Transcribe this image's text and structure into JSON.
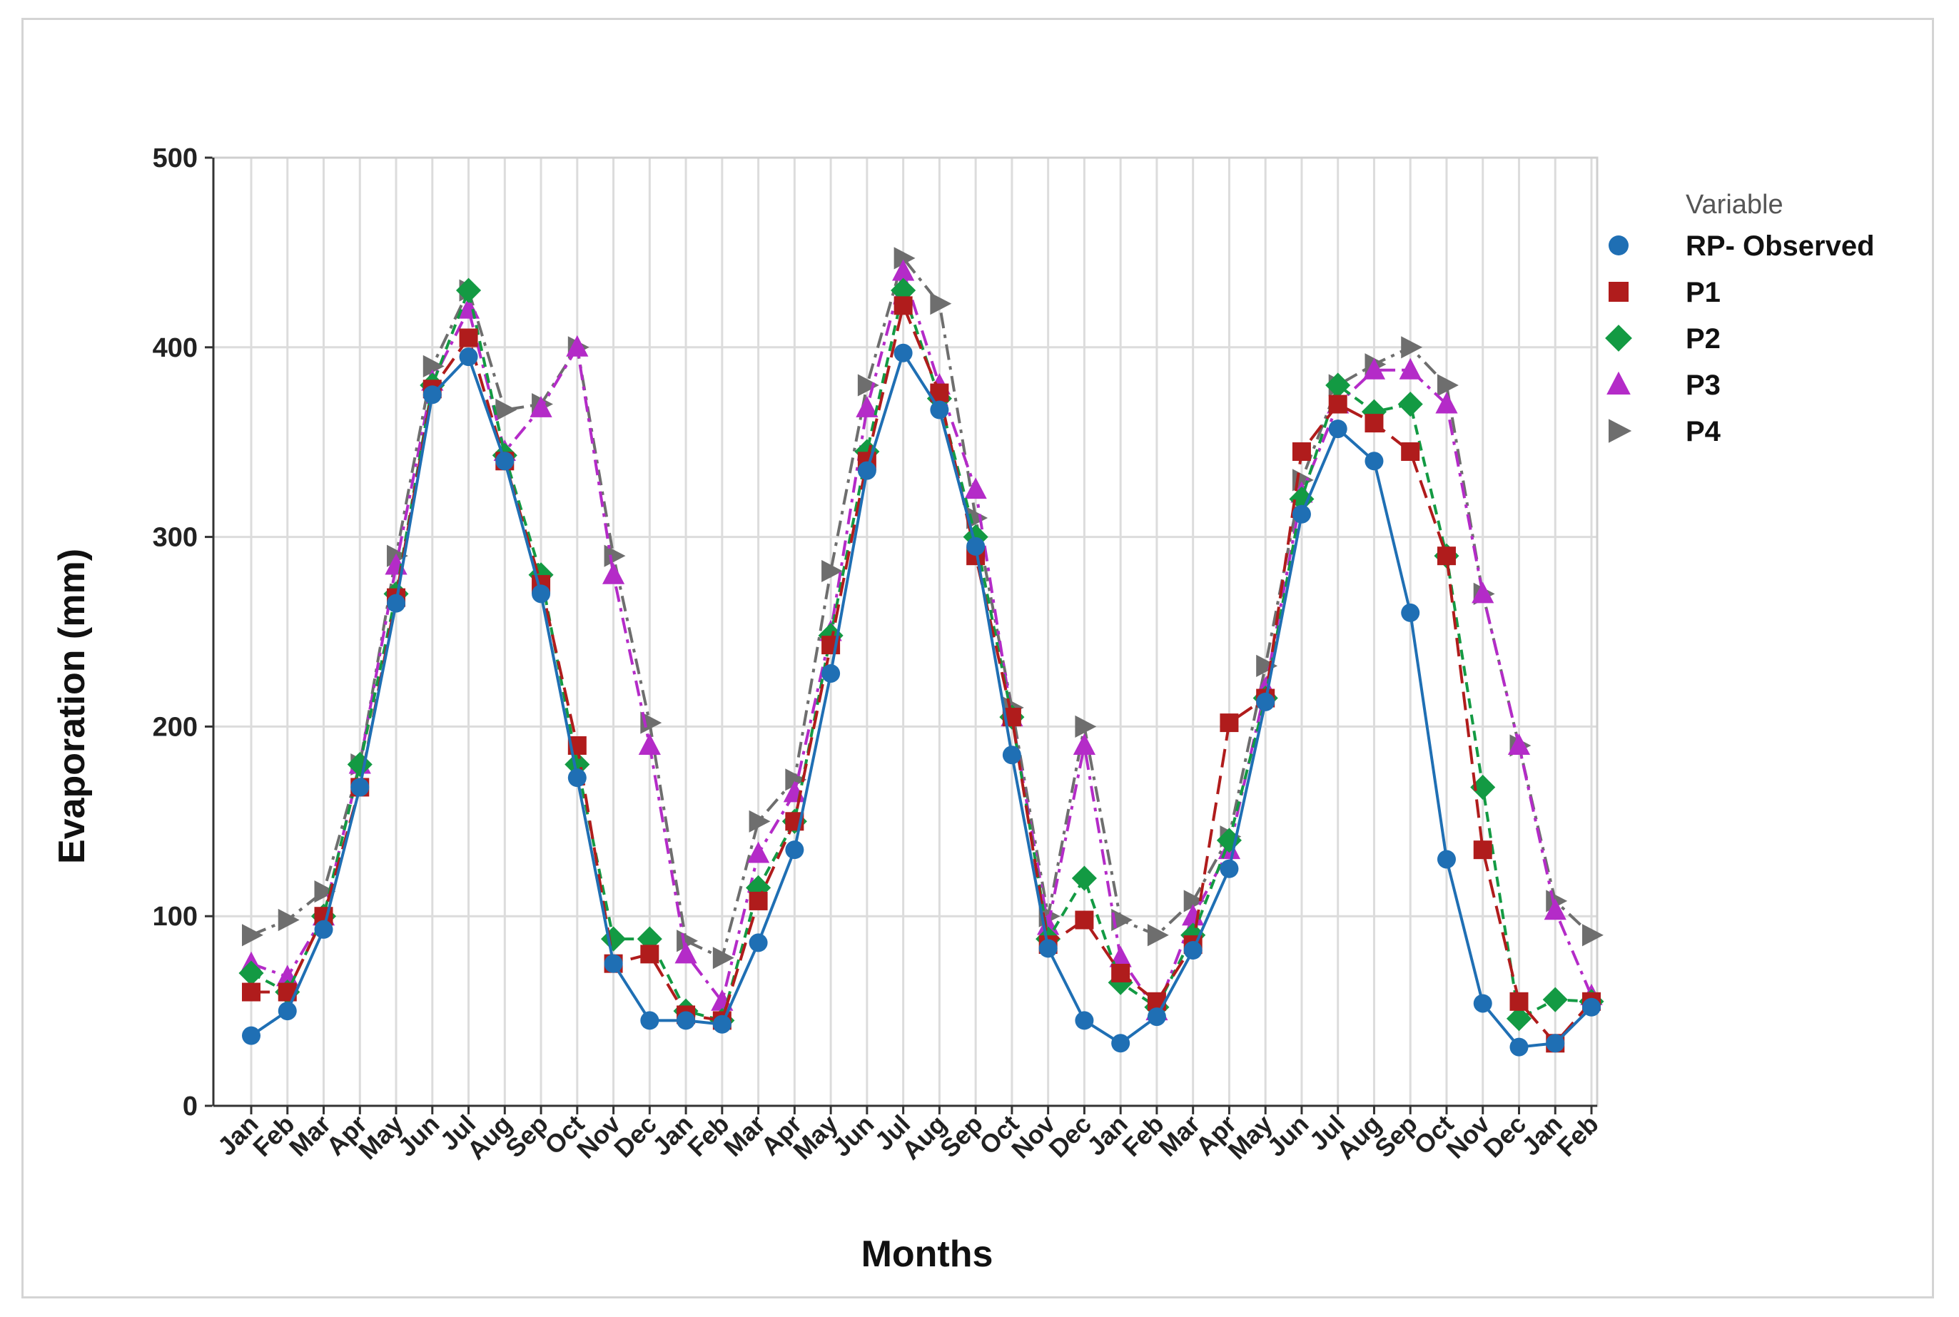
{
  "chart_data": {
    "type": "line",
    "title": "",
    "xlabel": "Months",
    "ylabel": "Evaporation (mm)",
    "ylim": [
      0,
      500
    ],
    "yticks": [
      0,
      100,
      200,
      300,
      400,
      500
    ],
    "grid": true,
    "legend_title": "Variable",
    "legend_position": "right",
    "categories": [
      "Jan",
      "Feb",
      "Mar",
      "Apr",
      "May",
      "Jun",
      "Jul",
      "Aug",
      "Sep",
      "Oct",
      "Nov",
      "Dec",
      "Jan",
      "Feb",
      "Mar",
      "Apr",
      "May",
      "Jun",
      "Jul",
      "Aug",
      "Sep",
      "Oct",
      "Nov",
      "Dec",
      "Jan",
      "Feb",
      "Mar",
      "Apr",
      "May",
      "Jun",
      "Jul",
      "Aug",
      "Sep",
      "Oct",
      "Nov",
      "Dec",
      "Jan",
      "Feb"
    ],
    "series": [
      {
        "name": "RP- Observed",
        "color": "#1f6fb4",
        "marker": "circle",
        "dash": "solid",
        "values": [
          37,
          50,
          93,
          168,
          265,
          375,
          395,
          340,
          270,
          173,
          75,
          45,
          45,
          43,
          86,
          135,
          228,
          335,
          397,
          367,
          295,
          185,
          83,
          45,
          33,
          47,
          82,
          125,
          213,
          312,
          357,
          340,
          260,
          130,
          54,
          31,
          33,
          52
        ]
      },
      {
        "name": "P1",
        "color": "#b01c1c",
        "marker": "square",
        "dash": "long",
        "values": [
          60,
          60,
          100,
          168,
          268,
          378,
          405,
          340,
          275,
          190,
          75,
          80,
          48,
          45,
          108,
          150,
          243,
          340,
          422,
          376,
          290,
          205,
          85,
          98,
          70,
          55,
          85,
          202,
          215,
          345,
          370,
          360,
          345,
          290,
          135,
          55,
          33,
          55
        ]
      },
      {
        "name": "P2",
        "color": "#139a43",
        "marker": "diamond",
        "dash": "medium",
        "values": [
          70,
          60,
          100,
          180,
          270,
          380,
          430,
          343,
          280,
          180,
          88,
          88,
          50,
          45,
          115,
          150,
          248,
          345,
          430,
          373,
          300,
          205,
          88,
          120,
          65,
          52,
          90,
          140,
          215,
          320,
          380,
          366,
          370,
          290,
          168,
          46,
          56,
          55
        ]
      },
      {
        "name": "P3",
        "color": "#b42bc8",
        "marker": "triangle",
        "dash": "dashdot",
        "values": [
          75,
          68,
          100,
          180,
          285,
          382,
          420,
          345,
          368,
          400,
          280,
          190,
          80,
          55,
          133,
          165,
          250,
          368,
          440,
          380,
          325,
          205,
          95,
          190,
          78,
          50,
          100,
          135,
          220,
          323,
          370,
          388,
          388,
          370,
          270,
          190,
          103,
          58
        ]
      },
      {
        "name": "P4",
        "color": "#6e6e6e",
        "marker": "tri-right",
        "dash": "dashdot",
        "values": [
          90,
          98,
          113,
          180,
          290,
          390,
          430,
          367,
          370,
          400,
          290,
          202,
          87,
          78,
          150,
          172,
          282,
          380,
          447,
          423,
          310,
          210,
          100,
          200,
          98,
          90,
          108,
          142,
          232,
          330,
          380,
          391,
          400,
          380,
          270,
          190,
          108,
          90
        ]
      }
    ]
  }
}
